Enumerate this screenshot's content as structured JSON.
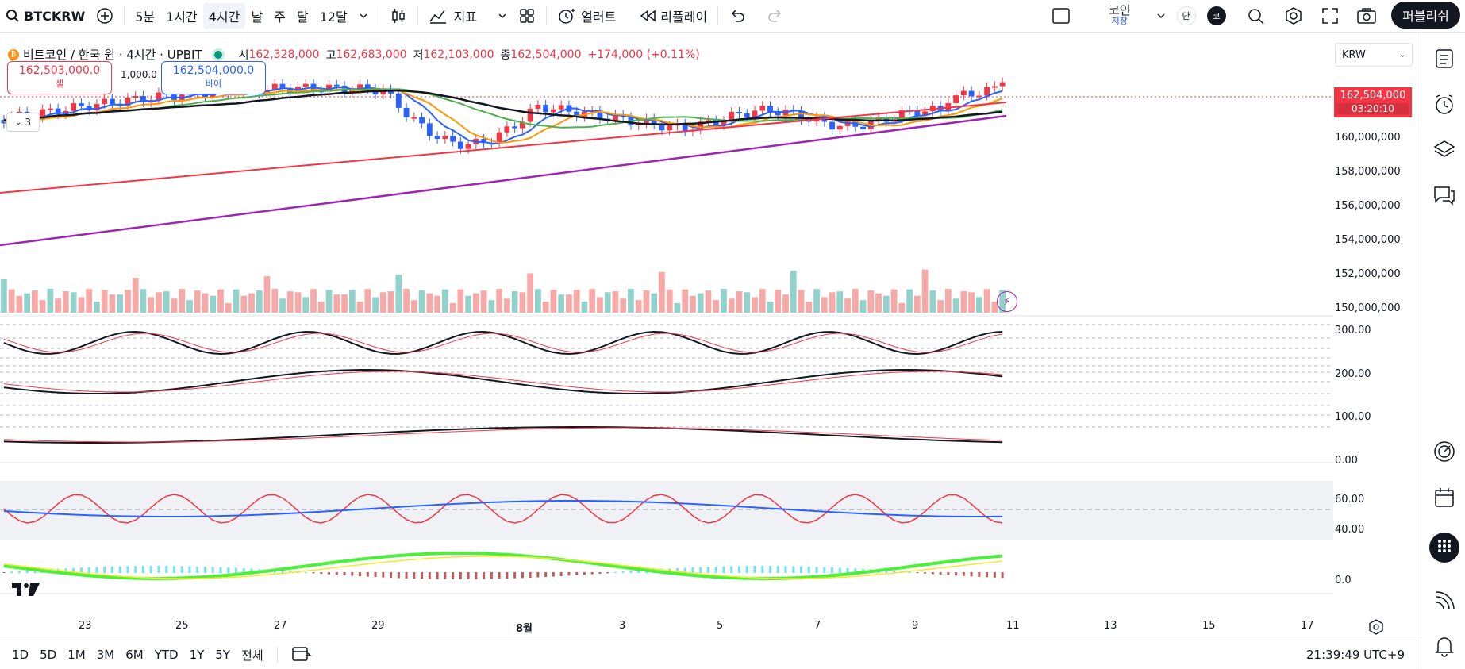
{
  "toolbar": {
    "symbol": "BTCKRW",
    "intervals": [
      "5분",
      "1시간",
      "4시간",
      "날",
      "주",
      "달",
      "12달"
    ],
    "active_interval": "4시간",
    "indicators_label": "지표",
    "alert_label": "얼러트",
    "replay_label": "리플레이",
    "layout_name": "코인",
    "layout_status": "저장",
    "single_label": "단",
    "user_initial": "코",
    "publish_label": "퍼블리쉬"
  },
  "legend": {
    "title": "비트코인 / 한국 원 · 4시간 · UPBIT",
    "open_label": "시",
    "open": "162,328,000",
    "high_label": "고",
    "high": "162,683,000",
    "low_label": "저",
    "low": "162,103,000",
    "close_label": "종",
    "close": "162,504,000",
    "change": "+174,000 (+0.11%)"
  },
  "trade": {
    "sell_price": "162,503,000.0",
    "sell_label": "셀",
    "spread": "1,000.0",
    "buy_price": "162,504,000.0",
    "buy_label": "바이"
  },
  "price_tag": {
    "price": "162,504,000",
    "countdown": "03:20:10"
  },
  "currency": "KRW",
  "indicator_count": "3",
  "yaxis_price": [
    "160,000,000",
    "158,000,000",
    "156,000,000",
    "154,000,000",
    "152,000,000",
    "150,000,000"
  ],
  "yaxis_osc": [
    "300.00",
    "200.00",
    "100.00",
    "0.00"
  ],
  "yaxis_rsi": [
    "60.00",
    "40.00"
  ],
  "yaxis_macd": [
    "0.0"
  ],
  "xaxis": [
    "23",
    "25",
    "27",
    "29",
    "8월",
    "3",
    "5",
    "7",
    "9",
    "11",
    "13",
    "15",
    "17"
  ],
  "bottom": {
    "ranges": [
      "1D",
      "5D",
      "1M",
      "3M",
      "6M",
      "YTD",
      "1Y",
      "5Y",
      "전체"
    ],
    "clock": "21:39:49 UTC+9"
  },
  "colors": {
    "up": "#f23645",
    "down": "#2962ff",
    "accent": "#131722"
  }
}
